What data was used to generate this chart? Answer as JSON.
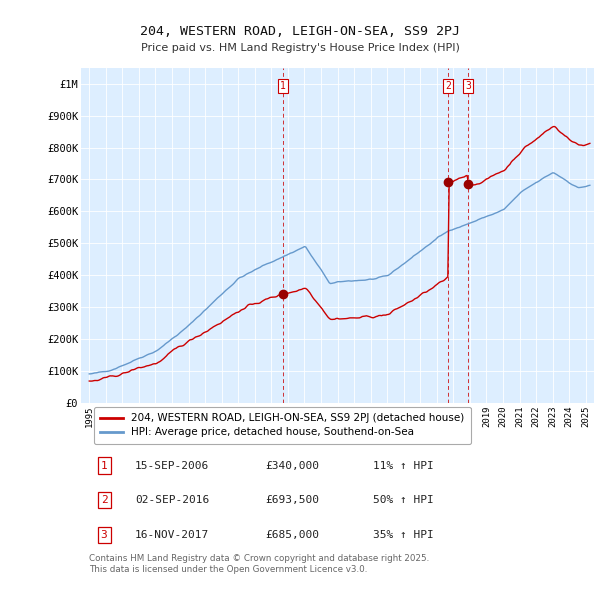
{
  "title": "204, WESTERN ROAD, LEIGH-ON-SEA, SS9 2PJ",
  "subtitle": "Price paid vs. HM Land Registry's House Price Index (HPI)",
  "ylabel_ticks": [
    "£0",
    "£100K",
    "£200K",
    "£300K",
    "£400K",
    "£500K",
    "£600K",
    "£700K",
    "£800K",
    "£900K",
    "£1M"
  ],
  "ytick_values": [
    0,
    100000,
    200000,
    300000,
    400000,
    500000,
    600000,
    700000,
    800000,
    900000,
    1000000
  ],
  "ylim": [
    0,
    1050000
  ],
  "xlim_start": 1994.5,
  "xlim_end": 2025.5,
  "background_color": "#ffffff",
  "plot_bg_color": "#ddeeff",
  "grid_color": "#ffffff",
  "sale_color": "#cc0000",
  "hpi_color": "#6699cc",
  "transactions": [
    {
      "date_num": 2006.71,
      "price": 340000,
      "label": "1"
    },
    {
      "date_num": 2016.67,
      "price": 693500,
      "label": "2"
    },
    {
      "date_num": 2017.88,
      "price": 685000,
      "label": "3"
    }
  ],
  "vline_dates": [
    2006.71,
    2016.67,
    2017.88
  ],
  "legend_entries": [
    "204, WESTERN ROAD, LEIGH-ON-SEA, SS9 2PJ (detached house)",
    "HPI: Average price, detached house, Southend-on-Sea"
  ],
  "table_rows": [
    {
      "num": "1",
      "date": "15-SEP-2006",
      "price": "£340,000",
      "hpi": "11% ↑ HPI"
    },
    {
      "num": "2",
      "date": "02-SEP-2016",
      "price": "£693,500",
      "hpi": "50% ↑ HPI"
    },
    {
      "num": "3",
      "date": "16-NOV-2017",
      "price": "£685,000",
      "hpi": "35% ↑ HPI"
    }
  ],
  "footer": "Contains HM Land Registry data © Crown copyright and database right 2025.\nThis data is licensed under the Open Government Licence v3.0."
}
